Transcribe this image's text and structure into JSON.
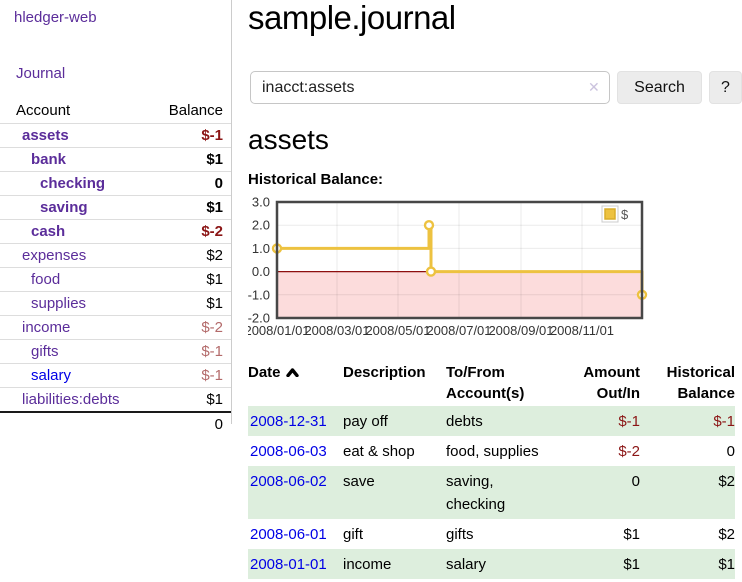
{
  "app": {
    "brand": "hledger-web",
    "nav": {
      "journal_label": "Journal"
    }
  },
  "sidebar": {
    "headers": {
      "account": "Account",
      "balance": "Balance"
    },
    "accounts": [
      {
        "name": "assets",
        "balance": "$-1",
        "indent": 0,
        "bold": true,
        "negative": true,
        "unvisited": false
      },
      {
        "name": "bank",
        "balance": "$1",
        "indent": 1,
        "bold": true,
        "negative": false,
        "unvisited": false
      },
      {
        "name": "checking",
        "balance": "0",
        "indent": 2,
        "bold": true,
        "negative": false,
        "unvisited": false
      },
      {
        "name": "saving",
        "balance": "$1",
        "indent": 2,
        "bold": true,
        "negative": false,
        "unvisited": false
      },
      {
        "name": "cash",
        "balance": "$-2",
        "indent": 1,
        "bold": true,
        "negative": true,
        "unvisited": false
      },
      {
        "name": "expenses",
        "balance": "$2",
        "indent": 0,
        "bold": false,
        "negative": false,
        "unvisited": false
      },
      {
        "name": "food",
        "balance": "$1",
        "indent": 1,
        "bold": false,
        "negative": false,
        "unvisited": false
      },
      {
        "name": "supplies",
        "balance": "$1",
        "indent": 1,
        "bold": false,
        "negative": false,
        "unvisited": false
      },
      {
        "name": "income",
        "balance": "$-2",
        "indent": 0,
        "bold": false,
        "negative": true,
        "unvisited": false
      },
      {
        "name": "gifts",
        "balance": "$-1",
        "indent": 1,
        "bold": false,
        "negative": true,
        "unvisited": false
      },
      {
        "name": "salary",
        "balance": "$-1",
        "indent": 1,
        "bold": false,
        "negative": true,
        "unvisited": true
      },
      {
        "name": "liabilities:debts",
        "balance": "$1",
        "indent": 0,
        "bold": false,
        "negative": false,
        "unvisited": false
      }
    ],
    "total": "0"
  },
  "page": {
    "title": "sample.journal"
  },
  "search": {
    "value": "inacct:assets",
    "clear_icon": "✕",
    "search_button_label": "Search",
    "help_button_label": "?"
  },
  "account_view": {
    "heading": "assets",
    "chart_title": "Historical Balance:"
  },
  "chart_data": {
    "type": "line",
    "step": true,
    "title": "Historical Balance:",
    "series": [
      {
        "name": "$",
        "color": "#edc240",
        "points": [
          [
            "2008-01-01",
            1
          ],
          [
            "2008-06-01",
            2
          ],
          [
            "2008-06-03",
            0
          ],
          [
            "2008-12-31",
            -1
          ]
        ]
      }
    ],
    "x_range": [
      "2008-01-01",
      "2008-12-31"
    ],
    "y_range": [
      -2,
      3
    ],
    "x_ticks": [
      {
        "date": "2008-01-01",
        "label": "2008/01/01"
      },
      {
        "date": "2008-03-01",
        "label": "2008/03/01"
      },
      {
        "date": "2008-05-01",
        "label": "2008/05/01"
      },
      {
        "date": "2008-07-01",
        "label": "2008/07/01"
      },
      {
        "date": "2008-09-01",
        "label": "2008/09/01"
      },
      {
        "date": "2008-11-01",
        "label": "2008/11/01"
      }
    ],
    "y_ticks": [
      "3.0",
      "2.0",
      "1.0",
      "0.0",
      "-1.0",
      "-2.0"
    ],
    "legend_position": "top-right",
    "grid": true,
    "colors": {
      "negative_region": "#fcdcdc",
      "zero_line": "#8d0f0f",
      "grid": "rgba(0,0,0,0.08)",
      "border": "#474747",
      "tick_text": "#333333"
    }
  },
  "register": {
    "columns": [
      {
        "lines": "Date",
        "align": "left",
        "sorted_asc": true
      },
      {
        "lines": "Description",
        "align": "left",
        "sorted_asc": false
      },
      {
        "lines": "To/From\nAccount(s)",
        "align": "left",
        "sorted_asc": false
      },
      {
        "lines": "Amount\nOut/In",
        "align": "right",
        "sorted_asc": false
      },
      {
        "lines": "Historical\nBalance",
        "align": "right",
        "sorted_asc": false
      }
    ],
    "rows": [
      {
        "date": "2008-12-31",
        "description": "pay off",
        "accounts": "debts",
        "amount": "$-1",
        "amount_negative": true,
        "balance": "$-1",
        "balance_negative": true,
        "highlighted": true
      },
      {
        "date": "2008-06-03",
        "description": "eat & shop",
        "accounts": "food, supplies",
        "amount": "$-2",
        "amount_negative": true,
        "balance": "0",
        "balance_negative": false,
        "highlighted": false
      },
      {
        "date": "2008-06-02",
        "description": "save",
        "accounts": "saving,\nchecking",
        "amount": "0",
        "amount_negative": false,
        "balance": "$2",
        "balance_negative": false,
        "highlighted": true
      },
      {
        "date": "2008-06-01",
        "description": "gift",
        "accounts": "gifts",
        "amount": "$1",
        "amount_negative": false,
        "balance": "$2",
        "balance_negative": false,
        "highlighted": false
      },
      {
        "date": "2008-01-01",
        "description": "income",
        "accounts": "salary",
        "amount": "$1",
        "amount_negative": false,
        "balance": "$1",
        "balance_negative": false,
        "highlighted": true
      }
    ]
  },
  "colors": {
    "link_purple": "#5b2d9a",
    "link_blue": "#0000e6",
    "negative_strong": "#8b1515",
    "negative_soft": "#b36a6a",
    "highlight_row_green": "#ddeedd",
    "button_gray": "#ececec"
  }
}
